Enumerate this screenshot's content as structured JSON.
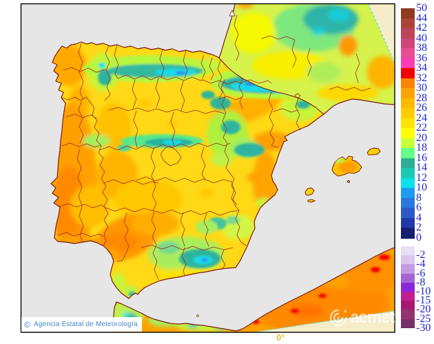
{
  "colors": {
    "page_bg": "#FFFFFF",
    "sea": "#E6E6E6",
    "out_of_domain": "#F6ECC8",
    "domain_boundary": "#55E2EC",
    "coastline": "#7E180E",
    "province_border": "#9E2B1B",
    "frame": "#000000",
    "scale_label": "#2323CD",
    "attribution_text": "#4086C8",
    "attribution_bg": "#FFFFFF",
    "meridian_label": "#E2BE2A",
    "watermark": "#FFFFFF",
    "land_base": "#FFD916",
    "hot_land": "#FF8A00",
    "cold_mountain": "#12DCEC"
  },
  "scale": {
    "upper_labels": [
      "50",
      "44",
      "42",
      "40",
      "38",
      "36",
      "34",
      "32",
      "30",
      "28",
      "26",
      "24",
      "22",
      "20",
      "18",
      "16",
      "14",
      "12",
      "10",
      "8",
      "6",
      "4",
      "2",
      "0"
    ],
    "upper_colors": [
      "#8F3B23",
      "#AC4438",
      "#BE4458",
      "#D04578",
      "#E84D95",
      "#FB3CB2",
      "#F20000",
      "#FC8500",
      "#FFA300",
      "#FFB900",
      "#FFCE00",
      "#FFE400",
      "#FFFF00",
      "#C8FF3C",
      "#66FF87",
      "#2EAD93",
      "#1CC9B4",
      "#0CE0EC",
      "#1E9BF0",
      "#2678E0",
      "#2C59C8",
      "#2238A8",
      "#161E6E"
    ],
    "lower_labels": [
      "-2",
      "-4",
      "-6",
      "-8",
      "-10",
      "-15",
      "-20",
      "-25",
      "-30"
    ],
    "lower_colors": [
      "#E8DFF6",
      "#D9C6EF",
      "#C29BE2",
      "#A763D4",
      "#8A26DC",
      "#C11F90",
      "#A61870",
      "#93336F",
      "#753069"
    ]
  },
  "annotations": {
    "meridian": "0°",
    "copyright_symbol": "©",
    "attribution": "Agencia Estatal de Meteorología",
    "watermark_text": "aemet"
  }
}
